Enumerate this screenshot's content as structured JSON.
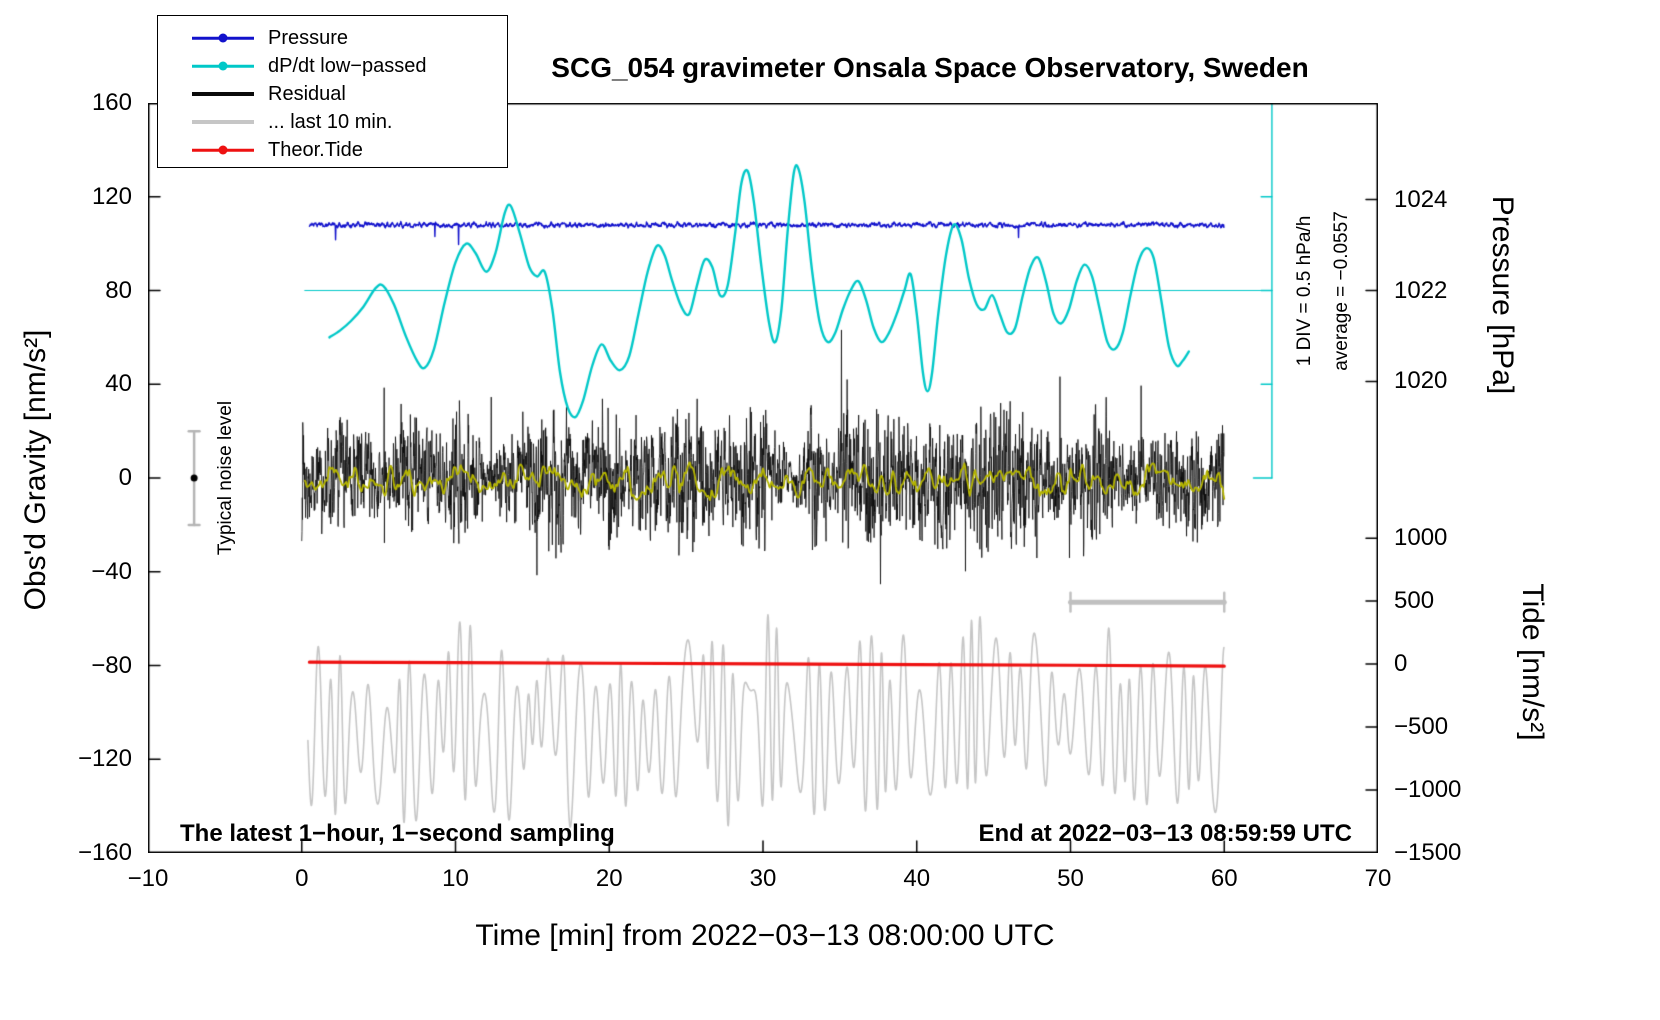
{
  "title": "SCG_054 gravimeter Onsala Space Observatory, Sweden",
  "footer": {
    "left": "The latest 1−hour, 1−second sampling",
    "right": "End at 2022−03−13 08:59:59 UTC"
  },
  "annotations": {
    "div_scale": "1 DIV = 0.5 hPa/h",
    "average": "average = −0.0557",
    "noise_level": "Typical noise level"
  },
  "legend": {
    "items": [
      {
        "id": "pressure",
        "label": "Pressure",
        "color": "#1212cc",
        "dot": true,
        "thick": false
      },
      {
        "id": "dpdt-lowpass",
        "label": "dP/dt low−passed",
        "color": "#00c8c8",
        "dot": true,
        "thick": false
      },
      {
        "id": "residual",
        "label": "Residual",
        "color": "#0a0a0a",
        "dot": false,
        "thick": true
      },
      {
        "id": "last-10-min",
        "label": "... last 10 min.",
        "color": "#c6c6c6",
        "dot": false,
        "thick": true
      },
      {
        "id": "theor-tide",
        "label": "Theor.Tide",
        "color": "#ee1111",
        "dot": true,
        "thick": false
      }
    ]
  },
  "chart_data": {
    "type": "line",
    "xlabel": "Time [min] from 2022−03−13 08:00:00 UTC",
    "ylabel_left": "Obs'd Gravity [nm/s²]",
    "xlim": [
      -10,
      70
    ],
    "ylim": [
      -160,
      160
    ],
    "x_ticks": [
      -10,
      0,
      10,
      20,
      30,
      40,
      50,
      60,
      70
    ],
    "y_ticks": [
      -160,
      -120,
      -80,
      -40,
      0,
      40,
      80,
      120,
      160
    ],
    "pressure_axis": {
      "label": "Pressure [hPa]",
      "ticks": [
        {
          "v": "1020",
          "g": 41.2
        },
        {
          "v": "1022",
          "g": 80
        },
        {
          "v": "1024",
          "g": 118.8
        }
      ]
    },
    "tide_axis": {
      "label": "Tide [nm/s²]",
      "ticks": [
        {
          "v": "1000",
          "g": -25.7
        },
        {
          "v": "500",
          "g": -52.5
        },
        {
          "v": "0",
          "g": -79.4
        },
        {
          "v": "−500",
          "g": -106.2
        },
        {
          "v": "−1000",
          "g": -133.1
        },
        {
          "v": "−1500",
          "g": -160
        }
      ]
    },
    "series": [
      {
        "id": "last10min",
        "name": "... last 10 min.",
        "type": "osc",
        "color": "#c6c6c6",
        "width": 1.6,
        "x1": 0.4,
        "x2": 60,
        "step": 0.02,
        "center": -104,
        "amp_base": 26,
        "amp_var": 16,
        "period": 0.85,
        "drift": 10,
        "seed": 42
      },
      {
        "id": "theor_tide",
        "name": "Theor.Tide",
        "type": "line",
        "color": "#ee1111",
        "width": 3.2,
        "points": [
          [
            0.5,
            -78.6
          ],
          [
            10,
            -78.8
          ],
          [
            20,
            -79.05
          ],
          [
            30,
            -79.3
          ],
          [
            40,
            -79.6
          ],
          [
            50,
            -79.9
          ],
          [
            60,
            -80.3
          ]
        ]
      },
      {
        "id": "residual",
        "name": "Residual",
        "type": "residual",
        "color": "#0a0a0a",
        "width": 0.8,
        "x1": 0,
        "x2": 60,
        "step": 0.0167,
        "center": 0,
        "a1": 19,
        "a2": 12,
        "env": 0.5,
        "spike_p": 0.005,
        "spike_min": 15,
        "spike_max": 46,
        "clamp": 70,
        "seed": 7
      },
      {
        "id": "residual_lowpass",
        "name": "Residual low-passed",
        "type": "noisy_flat",
        "color": "#b4b400",
        "width": 1.8,
        "x1": 0.2,
        "x2": 60,
        "step": 0.05,
        "center": -1,
        "a1": 6.5,
        "f1": 2.6,
        "a2": 2.2,
        "f2": 9,
        "spike_p": 0,
        "seed": 21
      },
      {
        "id": "pressure",
        "name": "Pressure",
        "type": "noisy_flat",
        "color": "#1212cc",
        "width": 1.4,
        "x1": 0.5,
        "x2": 60,
        "step": 0.02,
        "center": 108,
        "a1": 0.9,
        "f1": 9,
        "a2": 0.6,
        "f2": 55,
        "spike_p": 0.002,
        "spike_neg": 0.85,
        "spike_min": 2,
        "spike_max": 9,
        "seed": 5
      },
      {
        "id": "dpdt",
        "name": "dP/dt low-passed",
        "type": "spline",
        "color": "#00c8c8",
        "width": 2.4,
        "points": [
          [
            1.8,
            60
          ],
          [
            2.5,
            63
          ],
          [
            3.2,
            67
          ],
          [
            4,
            73
          ],
          [
            4.8,
            81
          ],
          [
            5.3,
            82
          ],
          [
            6,
            74
          ],
          [
            6.8,
            60
          ],
          [
            7.5,
            50
          ],
          [
            8,
            47
          ],
          [
            8.6,
            55
          ],
          [
            9.3,
            75
          ],
          [
            10,
            92
          ],
          [
            10.7,
            100
          ],
          [
            11.3,
            96
          ],
          [
            12,
            88
          ],
          [
            12.6,
            96
          ],
          [
            13.2,
            113
          ],
          [
            13.6,
            116
          ],
          [
            14.2,
            104
          ],
          [
            14.8,
            90
          ],
          [
            15.3,
            86
          ],
          [
            15.8,
            88
          ],
          [
            16.3,
            72
          ],
          [
            16.8,
            45
          ],
          [
            17.3,
            30
          ],
          [
            17.8,
            26
          ],
          [
            18.3,
            33
          ],
          [
            18.9,
            48
          ],
          [
            19.5,
            57
          ],
          [
            20.1,
            50
          ],
          [
            20.7,
            46
          ],
          [
            21.3,
            52
          ],
          [
            21.9,
            70
          ],
          [
            22.5,
            88
          ],
          [
            23.1,
            99
          ],
          [
            23.6,
            95
          ],
          [
            24.1,
            84
          ],
          [
            24.7,
            73
          ],
          [
            25.2,
            70
          ],
          [
            25.7,
            82
          ],
          [
            26.2,
            93
          ],
          [
            26.7,
            90
          ],
          [
            27.2,
            78
          ],
          [
            27.7,
            82
          ],
          [
            28.2,
            105
          ],
          [
            28.6,
            126
          ],
          [
            29,
            131
          ],
          [
            29.4,
            118
          ],
          [
            29.9,
            90
          ],
          [
            30.4,
            66
          ],
          [
            30.8,
            58
          ],
          [
            31.2,
            72
          ],
          [
            31.6,
            105
          ],
          [
            32,
            130
          ],
          [
            32.3,
            132
          ],
          [
            32.7,
            118
          ],
          [
            33.2,
            88
          ],
          [
            33.7,
            66
          ],
          [
            34.2,
            58
          ],
          [
            34.7,
            62
          ],
          [
            35.2,
            72
          ],
          [
            35.7,
            80
          ],
          [
            36.2,
            84
          ],
          [
            36.7,
            76
          ],
          [
            37.2,
            64
          ],
          [
            37.7,
            58
          ],
          [
            38.2,
            62
          ],
          [
            38.7,
            70
          ],
          [
            39.2,
            80
          ],
          [
            39.6,
            87
          ],
          [
            40,
            70
          ],
          [
            40.4,
            45
          ],
          [
            40.7,
            37
          ],
          [
            41,
            45
          ],
          [
            41.4,
            70
          ],
          [
            41.9,
            95
          ],
          [
            42.4,
            108
          ],
          [
            42.9,
            102
          ],
          [
            43.4,
            85
          ],
          [
            43.9,
            74
          ],
          [
            44.4,
            72
          ],
          [
            44.9,
            78
          ],
          [
            45.4,
            70
          ],
          [
            45.9,
            62
          ],
          [
            46.4,
            64
          ],
          [
            46.9,
            78
          ],
          [
            47.4,
            90
          ],
          [
            47.9,
            94
          ],
          [
            48.4,
            84
          ],
          [
            48.9,
            70
          ],
          [
            49.4,
            66
          ],
          [
            49.9,
            72
          ],
          [
            50.4,
            84
          ],
          [
            50.9,
            91
          ],
          [
            51.4,
            86
          ],
          [
            51.9,
            72
          ],
          [
            52.4,
            58
          ],
          [
            52.9,
            55
          ],
          [
            53.4,
            62
          ],
          [
            53.9,
            78
          ],
          [
            54.4,
            92
          ],
          [
            54.9,
            98
          ],
          [
            55.4,
            94
          ],
          [
            55.9,
            76
          ],
          [
            56.4,
            56
          ],
          [
            56.9,
            48
          ],
          [
            57.3,
            50
          ],
          [
            57.7,
            54
          ]
        ]
      }
    ],
    "overlays": {
      "average_line": {
        "y": 80,
        "x1": 0.2,
        "x2": 63.1,
        "color": "#00c8c8"
      },
      "div_axis": {
        "x": 63.1,
        "g_top": 160,
        "g_bottom": 0,
        "tick_step_g": 40,
        "tick_len_min": 0.7,
        "cap_min": 1.2,
        "color": "#00c8c8"
      },
      "scale_bar": {
        "y": -53,
        "x1": 50,
        "x2": 60,
        "color": "#c0c0c0",
        "width": 5,
        "cap_g": 4
      },
      "noise_bar": {
        "x": -7,
        "g1": -20,
        "g2": 20,
        "color": "#b5b5b5",
        "cap_min": 0.35,
        "dot_color": "#000000"
      }
    }
  }
}
